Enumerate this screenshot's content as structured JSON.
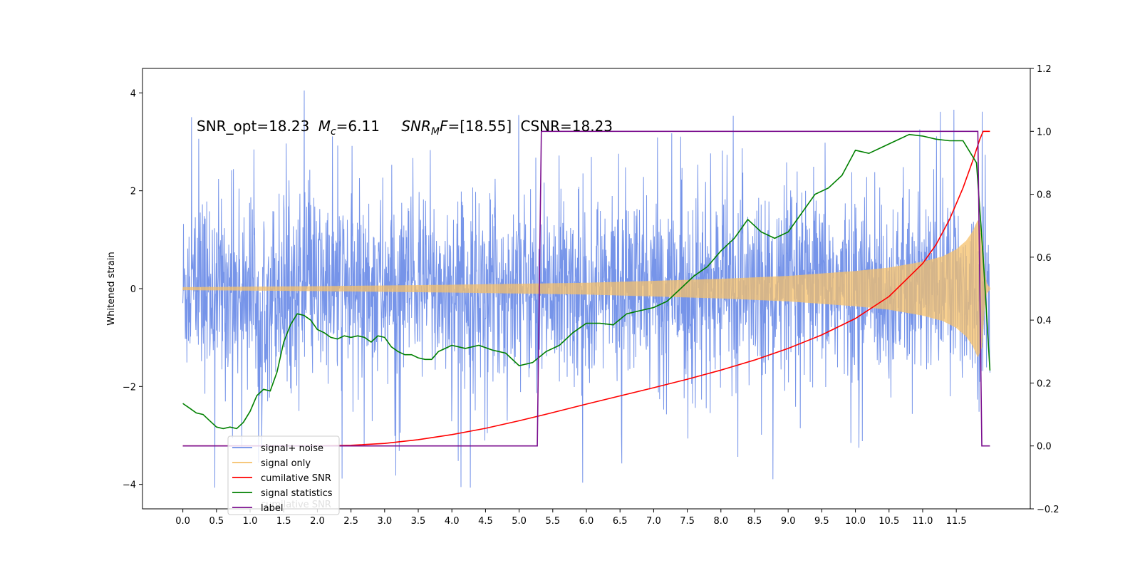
{
  "chart_data": {
    "type": "line",
    "annotation": {
      "snr_opt": "SNR_opt=18.23",
      "mc_symbol": "M",
      "mc_sub": "c",
      "mc_value": "=6.11",
      "snrmf_symbol": "SNR",
      "snrmf_sub": "M",
      "snrmf_letter": "F",
      "snrmf_value": "=[18.55]",
      "csnr": "CSNR=18.23"
    },
    "left_axis": {
      "label": "Whitened strain",
      "ylim": [
        -4.5,
        4.5
      ],
      "ticks": [
        -4,
        -2,
        0,
        2,
        4
      ],
      "tick_labels": [
        "−4",
        "−2",
        "0",
        "2",
        "4"
      ]
    },
    "right_axis": {
      "label": "",
      "ylim": [
        -0.2,
        1.2
      ],
      "ticks": [
        -0.2,
        0.0,
        0.2,
        0.4,
        0.6,
        0.8,
        1.0,
        1.2
      ],
      "tick_labels": [
        "−0.2",
        "0.0",
        "0.2",
        "0.4",
        "0.6",
        "0.8",
        "1.0",
        "1.2"
      ]
    },
    "x_axis": {
      "label": "",
      "xlim": [
        -0.6,
        12.6
      ],
      "ticks": [
        0,
        0.5,
        1,
        1.5,
        2,
        2.5,
        3,
        3.5,
        4,
        4.5,
        5,
        5.5,
        6,
        6.5,
        7,
        7.5,
        8,
        8.5,
        9,
        9.5,
        10,
        10.5,
        11,
        11.5
      ],
      "tick_labels": [
        "0.0",
        "0.5",
        "1.0",
        "1.5",
        "2.0",
        "2.5",
        "3.0",
        "3.5",
        "4.0",
        "4.5",
        "5.0",
        "5.5",
        "6.0",
        "6.5",
        "7.0",
        "7.5",
        "8.0",
        "8.5",
        "9.0",
        "9.5",
        "10.0",
        "10.5",
        "11.0",
        "11.5"
      ]
    },
    "series": [
      {
        "name": "signal+ noise",
        "axis": "left",
        "color": "#6f8ee8",
        "x_range": [
          0,
          12.0
        ],
        "band": {
          "typical_min": -2.4,
          "typical_max": 2.4,
          "peak_max": 4.1,
          "peak_min": -4.1
        }
      },
      {
        "name": "signal only",
        "axis": "left",
        "color": "#f5c06a",
        "x_range": [
          0,
          12.0
        ],
        "envelope": {
          "x": [
            0,
            2,
            4,
            6,
            8,
            9,
            10,
            10.5,
            11,
            11.3,
            11.5,
            11.65,
            11.75,
            11.82,
            11.88,
            11.92,
            11.95,
            12.0
          ],
          "amp": [
            0.03,
            0.05,
            0.08,
            0.12,
            0.2,
            0.26,
            0.36,
            0.43,
            0.55,
            0.66,
            0.8,
            0.98,
            1.18,
            1.4,
            1.2,
            0.4,
            0.1,
            0.02
          ]
        }
      },
      {
        "name": "cumilative SNR",
        "axis": "right",
        "color": "#ff0000",
        "x": [
          0,
          2,
          2.5,
          3,
          3.5,
          4,
          4.5,
          5,
          5.5,
          6,
          6.5,
          7,
          7.5,
          8,
          8.5,
          9,
          9.5,
          10,
          10.5,
          11,
          11.2,
          11.4,
          11.6,
          11.75,
          11.85,
          11.9,
          12.0
        ],
        "values": [
          0,
          0,
          0.002,
          0.008,
          0.02,
          0.036,
          0.056,
          0.08,
          0.106,
          0.133,
          0.159,
          0.185,
          0.212,
          0.241,
          0.273,
          0.31,
          0.353,
          0.405,
          0.475,
          0.58,
          0.64,
          0.72,
          0.82,
          0.91,
          0.975,
          1.0,
          1.0
        ]
      },
      {
        "name": "signal statistics",
        "axis": "right",
        "color": "#008000",
        "x": [
          0,
          0.1,
          0.2,
          0.3,
          0.4,
          0.5,
          0.6,
          0.7,
          0.8,
          0.9,
          1.0,
          1.1,
          1.2,
          1.3,
          1.4,
          1.5,
          1.6,
          1.7,
          1.8,
          1.9,
          2.0,
          2.1,
          2.2,
          2.3,
          2.4,
          2.5,
          2.6,
          2.7,
          2.8,
          2.9,
          3.0,
          3.1,
          3.2,
          3.3,
          3.4,
          3.5,
          3.6,
          3.7,
          3.8,
          3.9,
          4.0,
          4.2,
          4.4,
          4.6,
          4.8,
          5.0,
          5.2,
          5.4,
          5.6,
          5.8,
          6.0,
          6.2,
          6.4,
          6.6,
          6.8,
          7.0,
          7.2,
          7.4,
          7.6,
          7.8,
          8.0,
          8.2,
          8.4,
          8.6,
          8.8,
          9.0,
          9.2,
          9.4,
          9.6,
          9.8,
          10.0,
          10.2,
          10.4,
          10.6,
          10.8,
          11.0,
          11.2,
          11.4,
          11.6,
          11.8,
          11.9,
          12.0
        ],
        "values": [
          0.135,
          0.12,
          0.105,
          0.1,
          0.08,
          0.06,
          0.055,
          0.06,
          0.055,
          0.075,
          0.11,
          0.16,
          0.18,
          0.175,
          0.235,
          0.33,
          0.385,
          0.42,
          0.415,
          0.4,
          0.37,
          0.36,
          0.345,
          0.34,
          0.35,
          0.345,
          0.35,
          0.345,
          0.33,
          0.35,
          0.345,
          0.315,
          0.3,
          0.29,
          0.29,
          0.28,
          0.275,
          0.275,
          0.3,
          0.31,
          0.32,
          0.31,
          0.32,
          0.305,
          0.295,
          0.255,
          0.265,
          0.3,
          0.32,
          0.36,
          0.39,
          0.39,
          0.385,
          0.42,
          0.43,
          0.44,
          0.46,
          0.5,
          0.54,
          0.57,
          0.62,
          0.66,
          0.72,
          0.68,
          0.66,
          0.68,
          0.74,
          0.8,
          0.82,
          0.86,
          0.94,
          0.93,
          0.95,
          0.97,
          0.99,
          0.985,
          0.975,
          0.97,
          0.97,
          0.9,
          0.6,
          0.24
        ]
      },
      {
        "name": "label",
        "axis": "right",
        "color": "#7b0f8f",
        "x": [
          0,
          5.27,
          5.33,
          11.82,
          11.88,
          12.0
        ],
        "values": [
          0,
          0,
          1,
          1,
          0,
          0
        ]
      }
    ],
    "legend": {
      "position": "lower-left",
      "entries": [
        {
          "label": "signal+ noise",
          "color": "#6f8ee8"
        },
        {
          "label": "signal only",
          "color": "#f5c06a"
        },
        {
          "label": "cumilative SNR",
          "color": "#ff0000"
        },
        {
          "label": "signal statistics",
          "color": "#008000"
        },
        {
          "label": "label",
          "color": "#7b0f8f"
        }
      ],
      "ghost_text": "cumilative SNR"
    },
    "grid": false
  }
}
